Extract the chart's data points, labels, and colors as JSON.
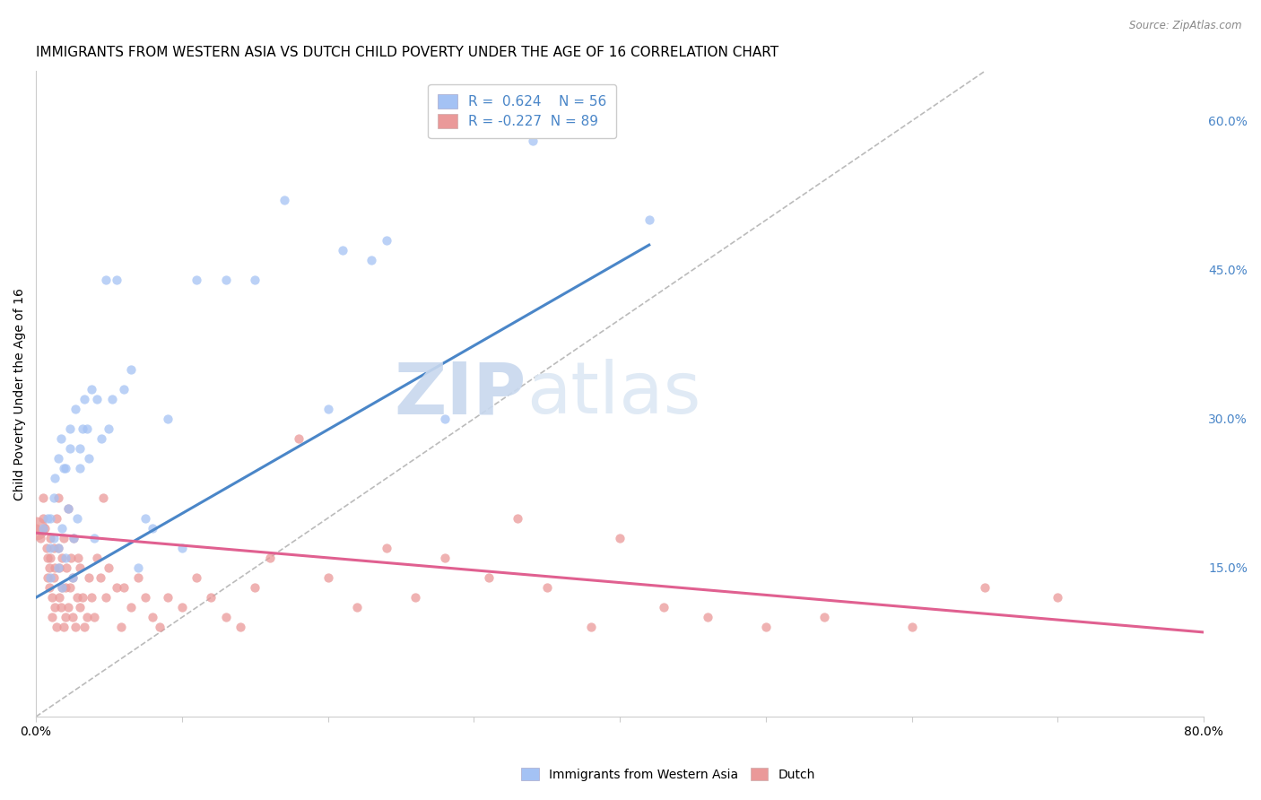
{
  "title": "IMMIGRANTS FROM WESTERN ASIA VS DUTCH CHILD POVERTY UNDER THE AGE OF 16 CORRELATION CHART",
  "source": "Source: ZipAtlas.com",
  "ylabel": "Child Poverty Under the Age of 16",
  "xlim": [
    0,
    0.8
  ],
  "ylim": [
    0,
    0.65
  ],
  "yticks_right": [
    0.0,
    0.15,
    0.3,
    0.45,
    0.6
  ],
  "ytick_right_labels": [
    "",
    "15.0%",
    "30.0%",
    "45.0%",
    "60.0%"
  ],
  "r_blue": 0.624,
  "n_blue": 56,
  "r_pink": -0.227,
  "n_pink": 89,
  "blue_color": "#a4c2f4",
  "pink_color": "#ea9999",
  "blue_line_color": "#4a86c8",
  "pink_line_color": "#e06090",
  "title_fontsize": 11,
  "axis_label_fontsize": 10,
  "tick_fontsize": 10,
  "legend_label_blue": "Immigrants from Western Asia",
  "legend_label_pink": "Dutch",
  "watermark_zip": "ZIP",
  "watermark_atlas": "atlas",
  "blue_line_x": [
    0.0,
    0.42
  ],
  "blue_line_y": [
    0.12,
    0.475
  ],
  "pink_line_x": [
    0.0,
    0.8
  ],
  "pink_line_y": [
    0.185,
    0.085
  ],
  "diag_line_x": [
    0.0,
    0.65
  ],
  "diag_line_y": [
    0.0,
    0.65
  ],
  "blue_scatter_x": [
    0.005,
    0.008,
    0.01,
    0.01,
    0.01,
    0.012,
    0.012,
    0.013,
    0.015,
    0.015,
    0.015,
    0.017,
    0.018,
    0.018,
    0.019,
    0.02,
    0.02,
    0.022,
    0.023,
    0.023,
    0.025,
    0.026,
    0.027,
    0.028,
    0.03,
    0.03,
    0.032,
    0.033,
    0.035,
    0.036,
    0.038,
    0.04,
    0.042,
    0.045,
    0.048,
    0.05,
    0.052,
    0.055,
    0.06,
    0.065,
    0.07,
    0.075,
    0.08,
    0.09,
    0.1,
    0.11,
    0.13,
    0.15,
    0.17,
    0.2,
    0.21,
    0.23,
    0.24,
    0.28,
    0.34,
    0.42
  ],
  "blue_scatter_y": [
    0.19,
    0.2,
    0.14,
    0.17,
    0.2,
    0.18,
    0.22,
    0.24,
    0.15,
    0.17,
    0.26,
    0.28,
    0.13,
    0.19,
    0.25,
    0.16,
    0.25,
    0.21,
    0.27,
    0.29,
    0.14,
    0.18,
    0.31,
    0.2,
    0.25,
    0.27,
    0.29,
    0.32,
    0.29,
    0.26,
    0.33,
    0.18,
    0.32,
    0.28,
    0.44,
    0.29,
    0.32,
    0.44,
    0.33,
    0.35,
    0.15,
    0.2,
    0.19,
    0.3,
    0.17,
    0.44,
    0.44,
    0.44,
    0.52,
    0.31,
    0.47,
    0.46,
    0.48,
    0.3,
    0.58,
    0.5
  ],
  "pink_scatter_x": [
    0.0,
    0.003,
    0.005,
    0.005,
    0.006,
    0.007,
    0.008,
    0.008,
    0.009,
    0.009,
    0.01,
    0.01,
    0.011,
    0.011,
    0.012,
    0.012,
    0.013,
    0.013,
    0.014,
    0.014,
    0.015,
    0.015,
    0.016,
    0.016,
    0.017,
    0.018,
    0.018,
    0.019,
    0.019,
    0.02,
    0.02,
    0.021,
    0.022,
    0.022,
    0.023,
    0.024,
    0.025,
    0.025,
    0.026,
    0.027,
    0.028,
    0.029,
    0.03,
    0.03,
    0.032,
    0.033,
    0.035,
    0.036,
    0.038,
    0.04,
    0.042,
    0.044,
    0.046,
    0.048,
    0.05,
    0.055,
    0.058,
    0.06,
    0.065,
    0.07,
    0.075,
    0.08,
    0.085,
    0.09,
    0.1,
    0.11,
    0.12,
    0.13,
    0.14,
    0.15,
    0.16,
    0.18,
    0.2,
    0.22,
    0.24,
    0.26,
    0.28,
    0.31,
    0.33,
    0.35,
    0.38,
    0.4,
    0.43,
    0.46,
    0.5,
    0.54,
    0.6,
    0.65,
    0.7
  ],
  "pink_scatter_y": [
    0.19,
    0.18,
    0.2,
    0.22,
    0.19,
    0.17,
    0.14,
    0.16,
    0.13,
    0.15,
    0.16,
    0.18,
    0.1,
    0.12,
    0.14,
    0.17,
    0.11,
    0.15,
    0.2,
    0.09,
    0.17,
    0.22,
    0.12,
    0.15,
    0.11,
    0.13,
    0.16,
    0.18,
    0.09,
    0.1,
    0.13,
    0.15,
    0.11,
    0.21,
    0.13,
    0.16,
    0.1,
    0.14,
    0.18,
    0.09,
    0.12,
    0.16,
    0.11,
    0.15,
    0.12,
    0.09,
    0.1,
    0.14,
    0.12,
    0.1,
    0.16,
    0.14,
    0.22,
    0.12,
    0.15,
    0.13,
    0.09,
    0.13,
    0.11,
    0.14,
    0.12,
    0.1,
    0.09,
    0.12,
    0.11,
    0.14,
    0.12,
    0.1,
    0.09,
    0.13,
    0.16,
    0.28,
    0.14,
    0.11,
    0.17,
    0.12,
    0.16,
    0.14,
    0.2,
    0.13,
    0.09,
    0.18,
    0.11,
    0.1,
    0.09,
    0.1,
    0.09,
    0.13,
    0.12
  ],
  "pink_large_x": [
    0.0
  ],
  "pink_large_y": [
    0.19
  ],
  "pink_large_size": 350
}
